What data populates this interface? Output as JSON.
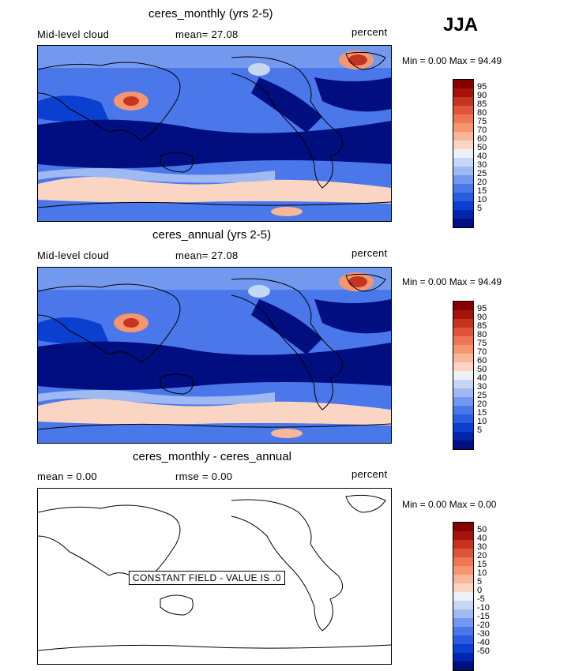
{
  "season": "JJA",
  "colors": {
    "abs_scale": [
      "#000e7f",
      "#0026b0",
      "#0a3fcf",
      "#2a5ce0",
      "#4a78ea",
      "#7399ee",
      "#9fbaf2",
      "#c6d7f5",
      "#ebf1f7",
      "#fbd5c3",
      "#f9b698",
      "#f69671",
      "#ee7653",
      "#df5539",
      "#c53321",
      "#a4140d",
      "#860000"
    ],
    "diff_scale": [
      "#000e7f",
      "#0026b0",
      "#0a3fcf",
      "#2a5ce0",
      "#4a78ea",
      "#7399ee",
      "#9fbaf2",
      "#c6d7f5",
      "#ebf1f7",
      "#fbd5c3",
      "#f9b698",
      "#f69671",
      "#ee7653",
      "#df5539",
      "#c53321",
      "#a4140d",
      "#860000"
    ]
  },
  "panels": [
    {
      "title": "ceres_monthly (yrs 2-5)",
      "left_label": "Mid-level cloud",
      "stat_text": "mean=  27.08",
      "units": "percent",
      "min_text": "Min =    0.00 Max =   94.49",
      "ticks": [
        "95",
        "90",
        "85",
        "80",
        "75",
        "70",
        "60",
        "50",
        "40",
        "30",
        "25",
        "20",
        "15",
        "10",
        "5"
      ]
    },
    {
      "title": "ceres_annual (yrs 2-5)",
      "left_label": "Mid-level cloud",
      "stat_text": "mean=  27.08",
      "units": "percent",
      "min_text": "Min =    0.00 Max =   94.49",
      "ticks": [
        "95",
        "90",
        "85",
        "80",
        "75",
        "70",
        "60",
        "50",
        "40",
        "30",
        "25",
        "20",
        "15",
        "10",
        "5"
      ]
    },
    {
      "title": "ceres_monthly - ceres_annual",
      "left_label": "mean =    0.00",
      "stat_text": "rmse =    0.00",
      "units": "percent",
      "min_text": "Min =    0.00 Max =    0.00",
      "ticks": [
        "50",
        "40",
        "30",
        "20",
        "15",
        "10",
        "5",
        "0",
        "-5",
        "-10",
        "-15",
        "-20",
        "-30",
        "-40",
        "-50"
      ],
      "const_label": "CONSTANT FIELD - VALUE IS .0"
    }
  ]
}
